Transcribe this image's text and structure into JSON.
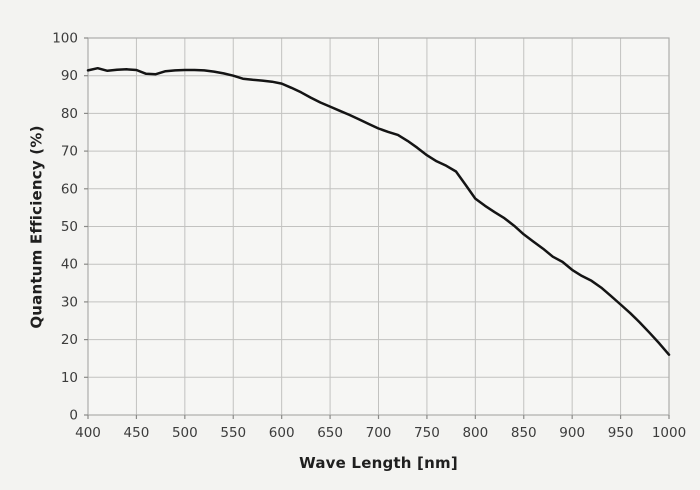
{
  "chart_data": {
    "type": "line",
    "title": "",
    "xlabel": "Wave Length [nm]",
    "ylabel": "Quantum Efficiency  (%)",
    "xlim": [
      400,
      1000
    ],
    "ylim": [
      0,
      100
    ],
    "x_ticks": [
      400,
      450,
      500,
      550,
      600,
      650,
      700,
      750,
      800,
      850,
      900,
      950,
      1000
    ],
    "y_ticks": [
      0,
      10,
      20,
      30,
      40,
      50,
      60,
      70,
      80,
      90,
      100
    ],
    "grid": true,
    "legend": "none",
    "colors": {
      "page_background": "#f3f3f1",
      "plot_background": "#f6f6f4",
      "gridline": "#c2c2c0",
      "plot_border": "#adadab",
      "tick_mark": "#8a8a88",
      "line": "#141414"
    },
    "series": [
      {
        "name": "Quantum Efficiency",
        "color": "#141414",
        "line_width": 2.5,
        "x": [
          400,
          410,
          420,
          430,
          440,
          450,
          460,
          470,
          480,
          490,
          500,
          510,
          520,
          530,
          540,
          550,
          560,
          570,
          580,
          590,
          600,
          610,
          620,
          630,
          640,
          650,
          660,
          670,
          680,
          690,
          700,
          710,
          720,
          730,
          740,
          750,
          760,
          770,
          780,
          790,
          800,
          810,
          820,
          830,
          840,
          850,
          860,
          870,
          880,
          890,
          900,
          910,
          920,
          930,
          940,
          950,
          960,
          970,
          980,
          990,
          1000
        ],
        "values": [
          91.4,
          92.0,
          91.3,
          91.6,
          91.7,
          91.5,
          90.5,
          90.4,
          91.2,
          91.4,
          91.5,
          91.5,
          91.4,
          91.1,
          90.6,
          90.0,
          89.2,
          88.9,
          88.7,
          88.4,
          87.9,
          86.8,
          85.6,
          84.2,
          82.9,
          81.8,
          80.7,
          79.6,
          78.4,
          77.2,
          76.0,
          75.1,
          74.3,
          72.7,
          70.9,
          68.9,
          67.3,
          66.1,
          64.6,
          61.0,
          57.4,
          55.5,
          53.8,
          52.2,
          50.2,
          47.9,
          46.0,
          44.1,
          42.0,
          40.6,
          38.5,
          36.9,
          35.6,
          33.8,
          31.6,
          29.3,
          27.0,
          24.5,
          21.8,
          19.0,
          16.0
        ]
      }
    ]
  }
}
